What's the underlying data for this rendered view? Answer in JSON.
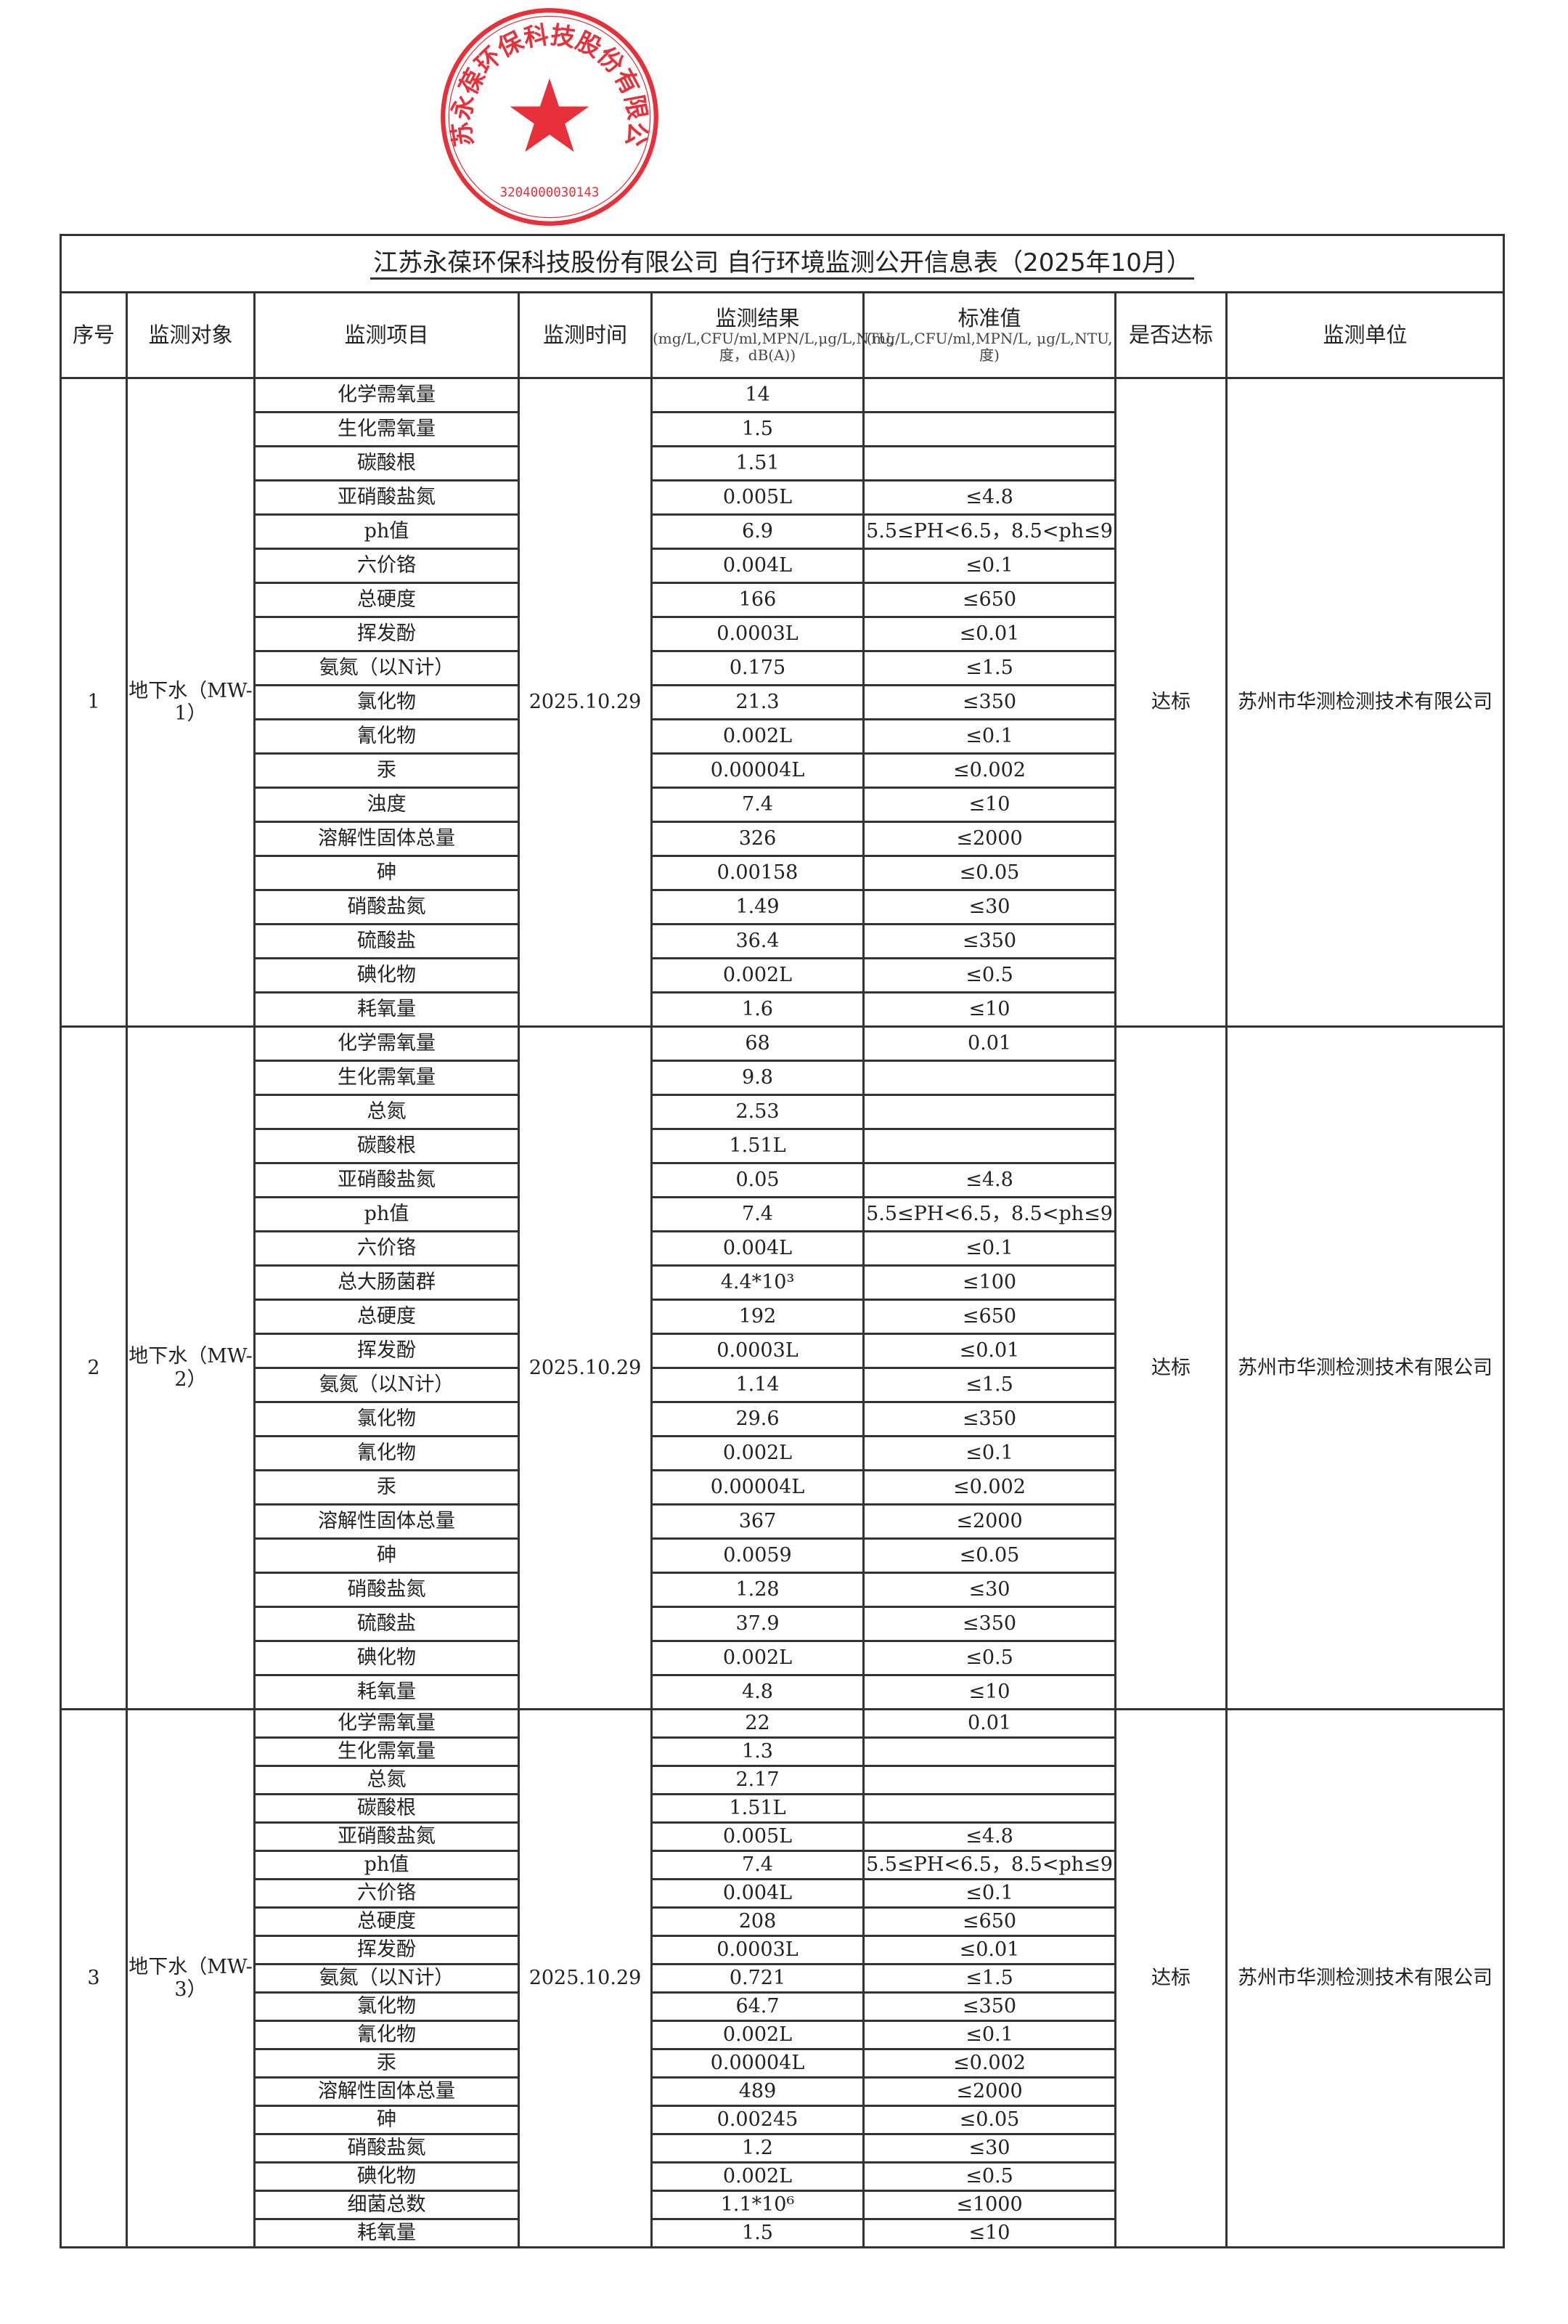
{
  "title": "江苏永葆环保科技股份有限公司 自行环境监测公开信息表（2025年10月）",
  "headers": {
    "index": "序号",
    "object": "监测对象",
    "item": "监测项目",
    "time": "监测时间",
    "result": "监测结果",
    "result_units": "(mg/L,CFU/ml,MPN/L,μg/L,NTU,度，dB(A))",
    "standard": "标准值",
    "standard_units": "(mg/L,CFU/ml,MPN/L, μg/L,NTU,度)",
    "compliant": "是否达标",
    "unit": "监测单位"
  },
  "stamp": {
    "text": "江苏永葆环保科技股份有限公司",
    "code": "3204000030143",
    "color": "#e8303a"
  },
  "groups": [
    {
      "index": "1",
      "object": "地下水（MW-1）",
      "time": "2025.10.29",
      "compliant": "达标",
      "unit": "苏州市华测检测技术有限公司",
      "rows": [
        [
          "化学需氧量",
          "14",
          ""
        ],
        [
          "生化需氧量",
          "1.5",
          ""
        ],
        [
          "碳酸根",
          "1.51",
          ""
        ],
        [
          "亚硝酸盐氮",
          "0.005L",
          "≤4.8"
        ],
        [
          "ph值",
          "6.9",
          "5.5≤PH<6.5，8.5<ph≤9"
        ],
        [
          "六价铬",
          "0.004L",
          "≤0.1"
        ],
        [
          "总硬度",
          "166",
          "≤650"
        ],
        [
          "挥发酚",
          "0.0003L",
          "≤0.01"
        ],
        [
          "氨氮（以N计）",
          "0.175",
          "≤1.5"
        ],
        [
          "氯化物",
          "21.3",
          "≤350"
        ],
        [
          "氰化物",
          "0.002L",
          "≤0.1"
        ],
        [
          "汞",
          "0.00004L",
          "≤0.002"
        ],
        [
          "浊度",
          "7.4",
          "≤10"
        ],
        [
          "溶解性固体总量",
          "326",
          "≤2000"
        ],
        [
          "砷",
          "0.00158",
          "≤0.05"
        ],
        [
          "硝酸盐氮",
          "1.49",
          "≤30"
        ],
        [
          "硫酸盐",
          "36.4",
          "≤350"
        ],
        [
          "碘化物",
          "0.002L",
          "≤0.5"
        ],
        [
          "耗氧量",
          "1.6",
          "≤10"
        ]
      ]
    },
    {
      "index": "2",
      "object": "地下水（MW-2）",
      "time": "2025.10.29",
      "compliant": "达标",
      "unit": "苏州市华测检测技术有限公司",
      "rows": [
        [
          "化学需氧量",
          "68",
          "0.01"
        ],
        [
          "生化需氧量",
          "9.8",
          ""
        ],
        [
          "总氮",
          "2.53",
          ""
        ],
        [
          "碳酸根",
          "1.51L",
          ""
        ],
        [
          "亚硝酸盐氮",
          "0.05",
          "≤4.8"
        ],
        [
          "ph值",
          "7.4",
          "5.5≤PH<6.5，8.5<ph≤9"
        ],
        [
          "六价铬",
          "0.004L",
          "≤0.1"
        ],
        [
          "总大肠菌群",
          "4.4*10³",
          "≤100"
        ],
        [
          "总硬度",
          "192",
          "≤650"
        ],
        [
          "挥发酚",
          "0.0003L",
          "≤0.01"
        ],
        [
          "氨氮（以N计）",
          "1.14",
          "≤1.5"
        ],
        [
          "氯化物",
          "29.6",
          "≤350"
        ],
        [
          "氰化物",
          "0.002L",
          "≤0.1"
        ],
        [
          "汞",
          "0.00004L",
          "≤0.002"
        ],
        [
          "溶解性固体总量",
          "367",
          "≤2000"
        ],
        [
          "砷",
          "0.0059",
          "≤0.05"
        ],
        [
          "硝酸盐氮",
          "1.28",
          "≤30"
        ],
        [
          "硫酸盐",
          "37.9",
          "≤350"
        ],
        [
          "碘化物",
          "0.002L",
          "≤0.5"
        ],
        [
          "耗氧量",
          "4.8",
          "≤10"
        ]
      ]
    },
    {
      "index": "3",
      "object": "地下水（MW-3）",
      "time": "2025.10.29",
      "compliant": "达标",
      "unit": "苏州市华测检测技术有限公司",
      "rows": [
        [
          "化学需氧量",
          "22",
          "0.01"
        ],
        [
          "生化需氧量",
          "1.3",
          ""
        ],
        [
          "总氮",
          "2.17",
          ""
        ],
        [
          "碳酸根",
          "1.51L",
          ""
        ],
        [
          "亚硝酸盐氮",
          "0.005L",
          "≤4.8"
        ],
        [
          "ph值",
          "7.4",
          "5.5≤PH<6.5，8.5<ph≤9"
        ],
        [
          "六价铬",
          "0.004L",
          "≤0.1"
        ],
        [
          "总硬度",
          "208",
          "≤650"
        ],
        [
          "挥发酚",
          "0.0003L",
          "≤0.01"
        ],
        [
          "氨氮（以N计）",
          "0.721",
          "≤1.5"
        ],
        [
          "氯化物",
          "64.7",
          "≤350"
        ],
        [
          "氰化物",
          "0.002L",
          "≤0.1"
        ],
        [
          "汞",
          "0.00004L",
          "≤0.002"
        ],
        [
          "溶解性固体总量",
          "489",
          "≤2000"
        ],
        [
          "砷",
          "0.00245",
          "≤0.05"
        ],
        [
          "硝酸盐氮",
          "1.2",
          "≤30"
        ],
        [
          "碘化物",
          "0.002L",
          "≤0.5"
        ],
        [
          "细菌总数",
          "1.1*10⁶",
          "≤1000"
        ],
        [
          "耗氧量",
          "1.5",
          "≤10"
        ]
      ]
    }
  ]
}
